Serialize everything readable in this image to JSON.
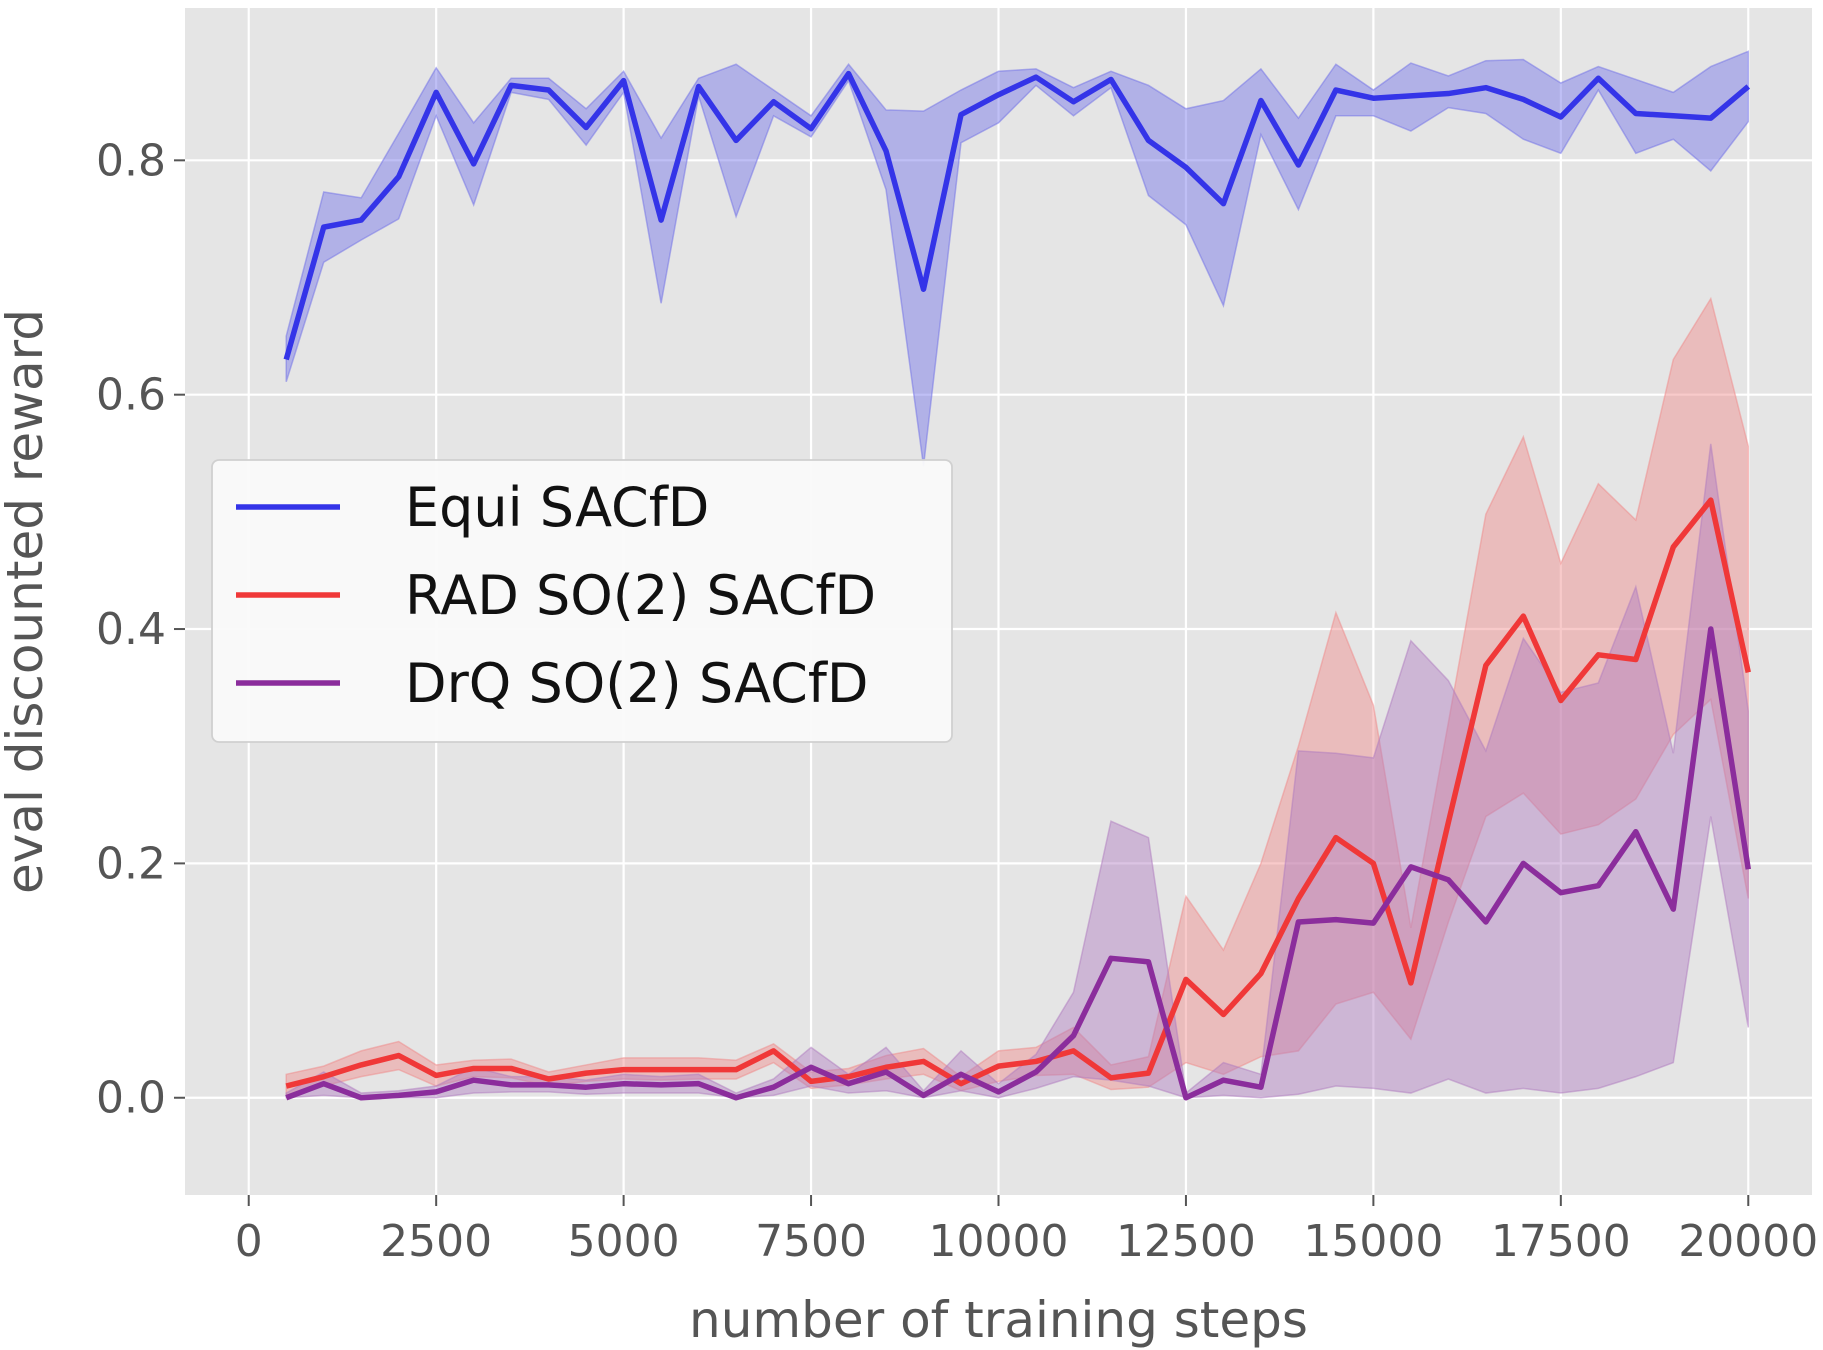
{
  "chart_data": {
    "type": "line",
    "title": "",
    "xlabel": "number of training steps",
    "ylabel": "eval discounted reward",
    "xlim": [
      -850,
      20850
    ],
    "ylim": [
      -0.083,
      0.93
    ],
    "xticks": [
      0,
      2500,
      5000,
      7500,
      10000,
      12500,
      15000,
      17500,
      20000
    ],
    "xtick_labels": [
      "0",
      "2500",
      "5000",
      "7500",
      "10000",
      "12500",
      "15000",
      "17500",
      "20000"
    ],
    "yticks": [
      0.0,
      0.2,
      0.4,
      0.6,
      0.8
    ],
    "ytick_labels": [
      "0.0",
      "0.2",
      "0.4",
      "0.6",
      "0.8"
    ],
    "grid": true,
    "legend_position": "center-left",
    "x": [
      500,
      1000,
      1500,
      2000,
      2500,
      3000,
      3500,
      4000,
      4500,
      5000,
      5500,
      6000,
      6500,
      7000,
      7500,
      8000,
      8500,
      9000,
      9500,
      10000,
      10500,
      11000,
      11500,
      12000,
      12500,
      13000,
      13500,
      14000,
      14500,
      15000,
      15500,
      16000,
      16500,
      17000,
      17500,
      18000,
      18500,
      19000,
      19500,
      20000
    ],
    "series": [
      {
        "name": "Equi SACfD",
        "color": "#3434e8",
        "band_color": "#7070e8",
        "values": [
          0.63,
          0.743,
          0.749,
          0.786,
          0.858,
          0.797,
          0.864,
          0.86,
          0.828,
          0.868,
          0.749,
          0.863,
          0.817,
          0.85,
          0.827,
          0.874,
          0.808,
          0.69,
          0.839,
          0.856,
          0.871,
          0.85,
          0.869,
          0.817,
          0.794,
          0.763,
          0.851,
          0.796,
          0.86,
          0.853,
          0.855,
          0.857,
          0.862,
          0.852,
          0.837,
          0.87,
          0.84,
          0.838,
          0.836,
          0.863
        ],
        "lower": [
          0.611,
          0.713,
          0.732,
          0.75,
          0.838,
          0.762,
          0.858,
          0.852,
          0.813,
          0.858,
          0.678,
          0.855,
          0.752,
          0.838,
          0.82,
          0.868,
          0.775,
          0.539,
          0.815,
          0.832,
          0.864,
          0.838,
          0.862,
          0.77,
          0.745,
          0.676,
          0.822,
          0.758,
          0.838,
          0.838,
          0.825,
          0.845,
          0.84,
          0.818,
          0.806,
          0.86,
          0.806,
          0.818,
          0.791,
          0.833
        ],
        "upper": [
          0.65,
          0.773,
          0.768,
          0.823,
          0.879,
          0.832,
          0.87,
          0.87,
          0.844,
          0.876,
          0.819,
          0.87,
          0.882,
          0.86,
          0.838,
          0.882,
          0.843,
          0.842,
          0.86,
          0.876,
          0.878,
          0.862,
          0.876,
          0.864,
          0.844,
          0.851,
          0.878,
          0.836,
          0.882,
          0.86,
          0.883,
          0.872,
          0.885,
          0.886,
          0.866,
          0.88,
          0.869,
          0.858,
          0.88,
          0.893
        ]
      },
      {
        "name": "RAD SO(2) SACfD",
        "color": "#f03838",
        "band_color": "#f08a8a",
        "values": [
          0.01,
          0.018,
          0.028,
          0.036,
          0.019,
          0.025,
          0.025,
          0.016,
          0.021,
          0.024,
          0.024,
          0.024,
          0.024,
          0.04,
          0.014,
          0.018,
          0.026,
          0.031,
          0.012,
          0.027,
          0.031,
          0.04,
          0.017,
          0.021,
          0.101,
          0.071,
          0.106,
          0.17,
          0.222,
          0.2,
          0.098,
          0.235,
          0.369,
          0.411,
          0.339,
          0.378,
          0.374,
          0.47,
          0.51,
          0.363
        ],
        "lower": [
          0.002,
          0.01,
          0.018,
          0.024,
          0.01,
          0.018,
          0.017,
          0.01,
          0.014,
          0.016,
          0.015,
          0.016,
          0.016,
          0.03,
          0.008,
          0.011,
          0.016,
          0.02,
          0.006,
          0.014,
          0.019,
          0.02,
          0.007,
          0.009,
          0.03,
          0.02,
          0.035,
          0.04,
          0.08,
          0.09,
          0.05,
          0.15,
          0.24,
          0.26,
          0.225,
          0.233,
          0.255,
          0.31,
          0.34,
          0.17
        ],
        "upper": [
          0.02,
          0.027,
          0.04,
          0.048,
          0.028,
          0.032,
          0.033,
          0.022,
          0.028,
          0.034,
          0.034,
          0.034,
          0.032,
          0.046,
          0.022,
          0.025,
          0.036,
          0.042,
          0.018,
          0.04,
          0.043,
          0.06,
          0.028,
          0.035,
          0.172,
          0.126,
          0.2,
          0.3,
          0.414,
          0.335,
          0.145,
          0.32,
          0.498,
          0.564,
          0.456,
          0.524,
          0.493,
          0.63,
          0.682,
          0.556
        ]
      },
      {
        "name": "DrQ SO(2) SACfD",
        "color": "#8b2d9c",
        "band_color": "#b07cc0",
        "values": [
          0.0,
          0.012,
          0.0,
          0.002,
          0.005,
          0.015,
          0.011,
          0.011,
          0.009,
          0.012,
          0.011,
          0.012,
          0.0,
          0.009,
          0.026,
          0.012,
          0.022,
          0.002,
          0.02,
          0.005,
          0.022,
          0.053,
          0.119,
          0.116,
          0.0,
          0.015,
          0.009,
          0.15,
          0.152,
          0.149,
          0.197,
          0.186,
          0.15,
          0.2,
          0.175,
          0.181,
          0.227,
          0.161,
          0.4,
          0.195
        ],
        "lower": [
          0.0,
          0.002,
          0.0,
          0.0,
          0.0,
          0.004,
          0.005,
          0.005,
          0.003,
          0.004,
          0.004,
          0.004,
          0.0,
          0.002,
          0.01,
          0.004,
          0.006,
          0.0,
          0.006,
          0.0,
          0.008,
          0.018,
          0.015,
          0.01,
          0.0,
          0.002,
          0.0,
          0.003,
          0.01,
          0.008,
          0.004,
          0.016,
          0.004,
          0.008,
          0.004,
          0.008,
          0.018,
          0.03,
          0.24,
          0.06
        ],
        "upper": [
          0.004,
          0.022,
          0.004,
          0.006,
          0.01,
          0.026,
          0.018,
          0.018,
          0.015,
          0.02,
          0.018,
          0.02,
          0.004,
          0.016,
          0.043,
          0.02,
          0.043,
          0.006,
          0.04,
          0.012,
          0.037,
          0.09,
          0.236,
          0.222,
          0.004,
          0.03,
          0.02,
          0.296,
          0.294,
          0.29,
          0.39,
          0.356,
          0.296,
          0.392,
          0.346,
          0.354,
          0.436,
          0.294,
          0.558,
          0.33
        ]
      }
    ]
  }
}
